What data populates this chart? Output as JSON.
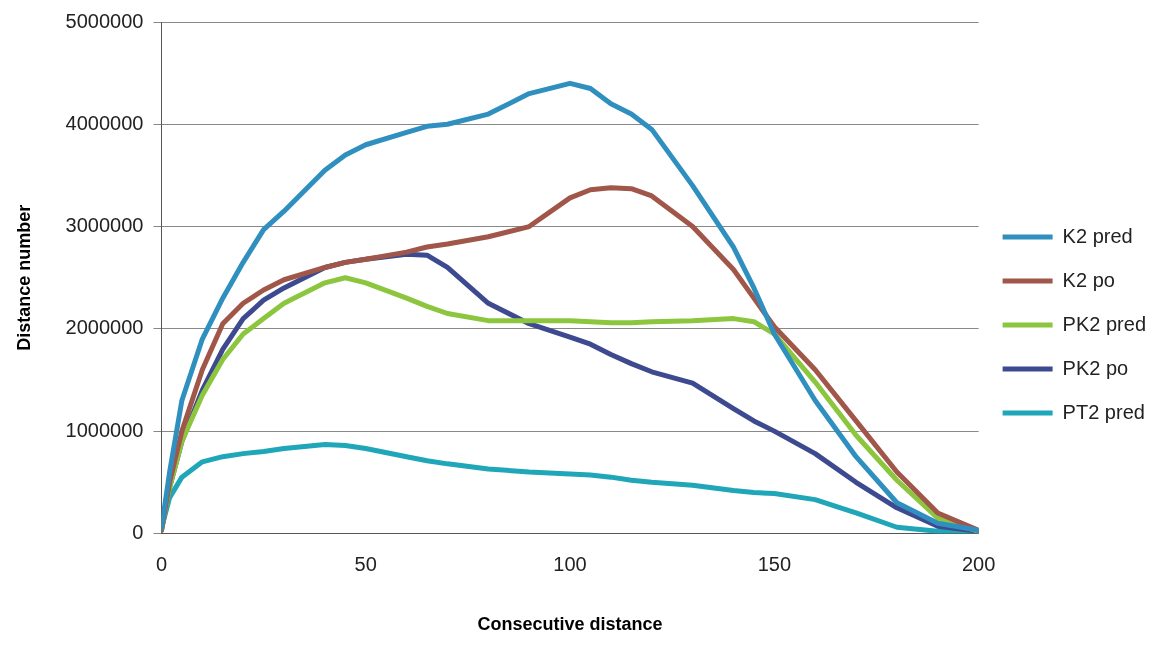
{
  "chart_data": {
    "type": "line",
    "xlabel": "Consecutive distance",
    "ylabel": "Distance number",
    "x": [
      0,
      2,
      5,
      10,
      15,
      20,
      25,
      30,
      40,
      45,
      50,
      60,
      65,
      70,
      80,
      90,
      100,
      105,
      110,
      115,
      120,
      130,
      140,
      145,
      150,
      160,
      170,
      180,
      190,
      200
    ],
    "series": [
      {
        "name": "K2 pred",
        "color": "#2f8fbf",
        "values": [
          50000,
          600000,
          1300000,
          1900000,
          2300000,
          2650000,
          2970000,
          3150000,
          3550000,
          3700000,
          3800000,
          3920000,
          3980000,
          4000000,
          4100000,
          4300000,
          4400000,
          4350000,
          4200000,
          4100000,
          3950000,
          3400000,
          2800000,
          2400000,
          1950000,
          1300000,
          750000,
          300000,
          100000,
          30000
        ]
      },
      {
        "name": "K2 po",
        "color": "#a0574a",
        "values": [
          30000,
          500000,
          1000000,
          1600000,
          2050000,
          2250000,
          2380000,
          2480000,
          2600000,
          2650000,
          2680000,
          2750000,
          2800000,
          2830000,
          2900000,
          3000000,
          3280000,
          3360000,
          3380000,
          3370000,
          3300000,
          3000000,
          2580000,
          2300000,
          2020000,
          1600000,
          1100000,
          600000,
          200000,
          30000
        ]
      },
      {
        "name": "PK2 pred",
        "color": "#8cc63f",
        "values": [
          30000,
          450000,
          900000,
          1350000,
          1700000,
          1950000,
          2100000,
          2250000,
          2450000,
          2500000,
          2450000,
          2300000,
          2220000,
          2150000,
          2080000,
          2080000,
          2080000,
          2070000,
          2060000,
          2060000,
          2070000,
          2080000,
          2100000,
          2070000,
          1950000,
          1480000,
          960000,
          520000,
          150000,
          20000
        ]
      },
      {
        "name": "PK2 po",
        "color": "#3d4a8f",
        "values": [
          30000,
          450000,
          900000,
          1400000,
          1800000,
          2100000,
          2280000,
          2400000,
          2600000,
          2650000,
          2680000,
          2730000,
          2720000,
          2600000,
          2250000,
          2050000,
          1920000,
          1850000,
          1750000,
          1660000,
          1580000,
          1470000,
          1220000,
          1100000,
          1000000,
          780000,
          500000,
          250000,
          70000,
          20000
        ]
      },
      {
        "name": "PT2 pred",
        "color": "#1fa6b8",
        "values": [
          50000,
          350000,
          550000,
          700000,
          750000,
          780000,
          800000,
          830000,
          870000,
          860000,
          830000,
          750000,
          710000,
          680000,
          630000,
          600000,
          580000,
          570000,
          550000,
          520000,
          500000,
          470000,
          420000,
          400000,
          390000,
          330000,
          200000,
          60000,
          20000,
          20000
        ]
      }
    ],
    "xlim": [
      0,
      200
    ],
    "xticks": [
      0,
      50,
      100,
      150,
      200
    ],
    "ylim": [
      0,
      5000000
    ],
    "yticks": [
      0,
      1000000,
      2000000,
      3000000,
      4000000,
      5000000
    ],
    "grid": "y",
    "legend": "right",
    "marker": "none",
    "line_style": "solid"
  }
}
